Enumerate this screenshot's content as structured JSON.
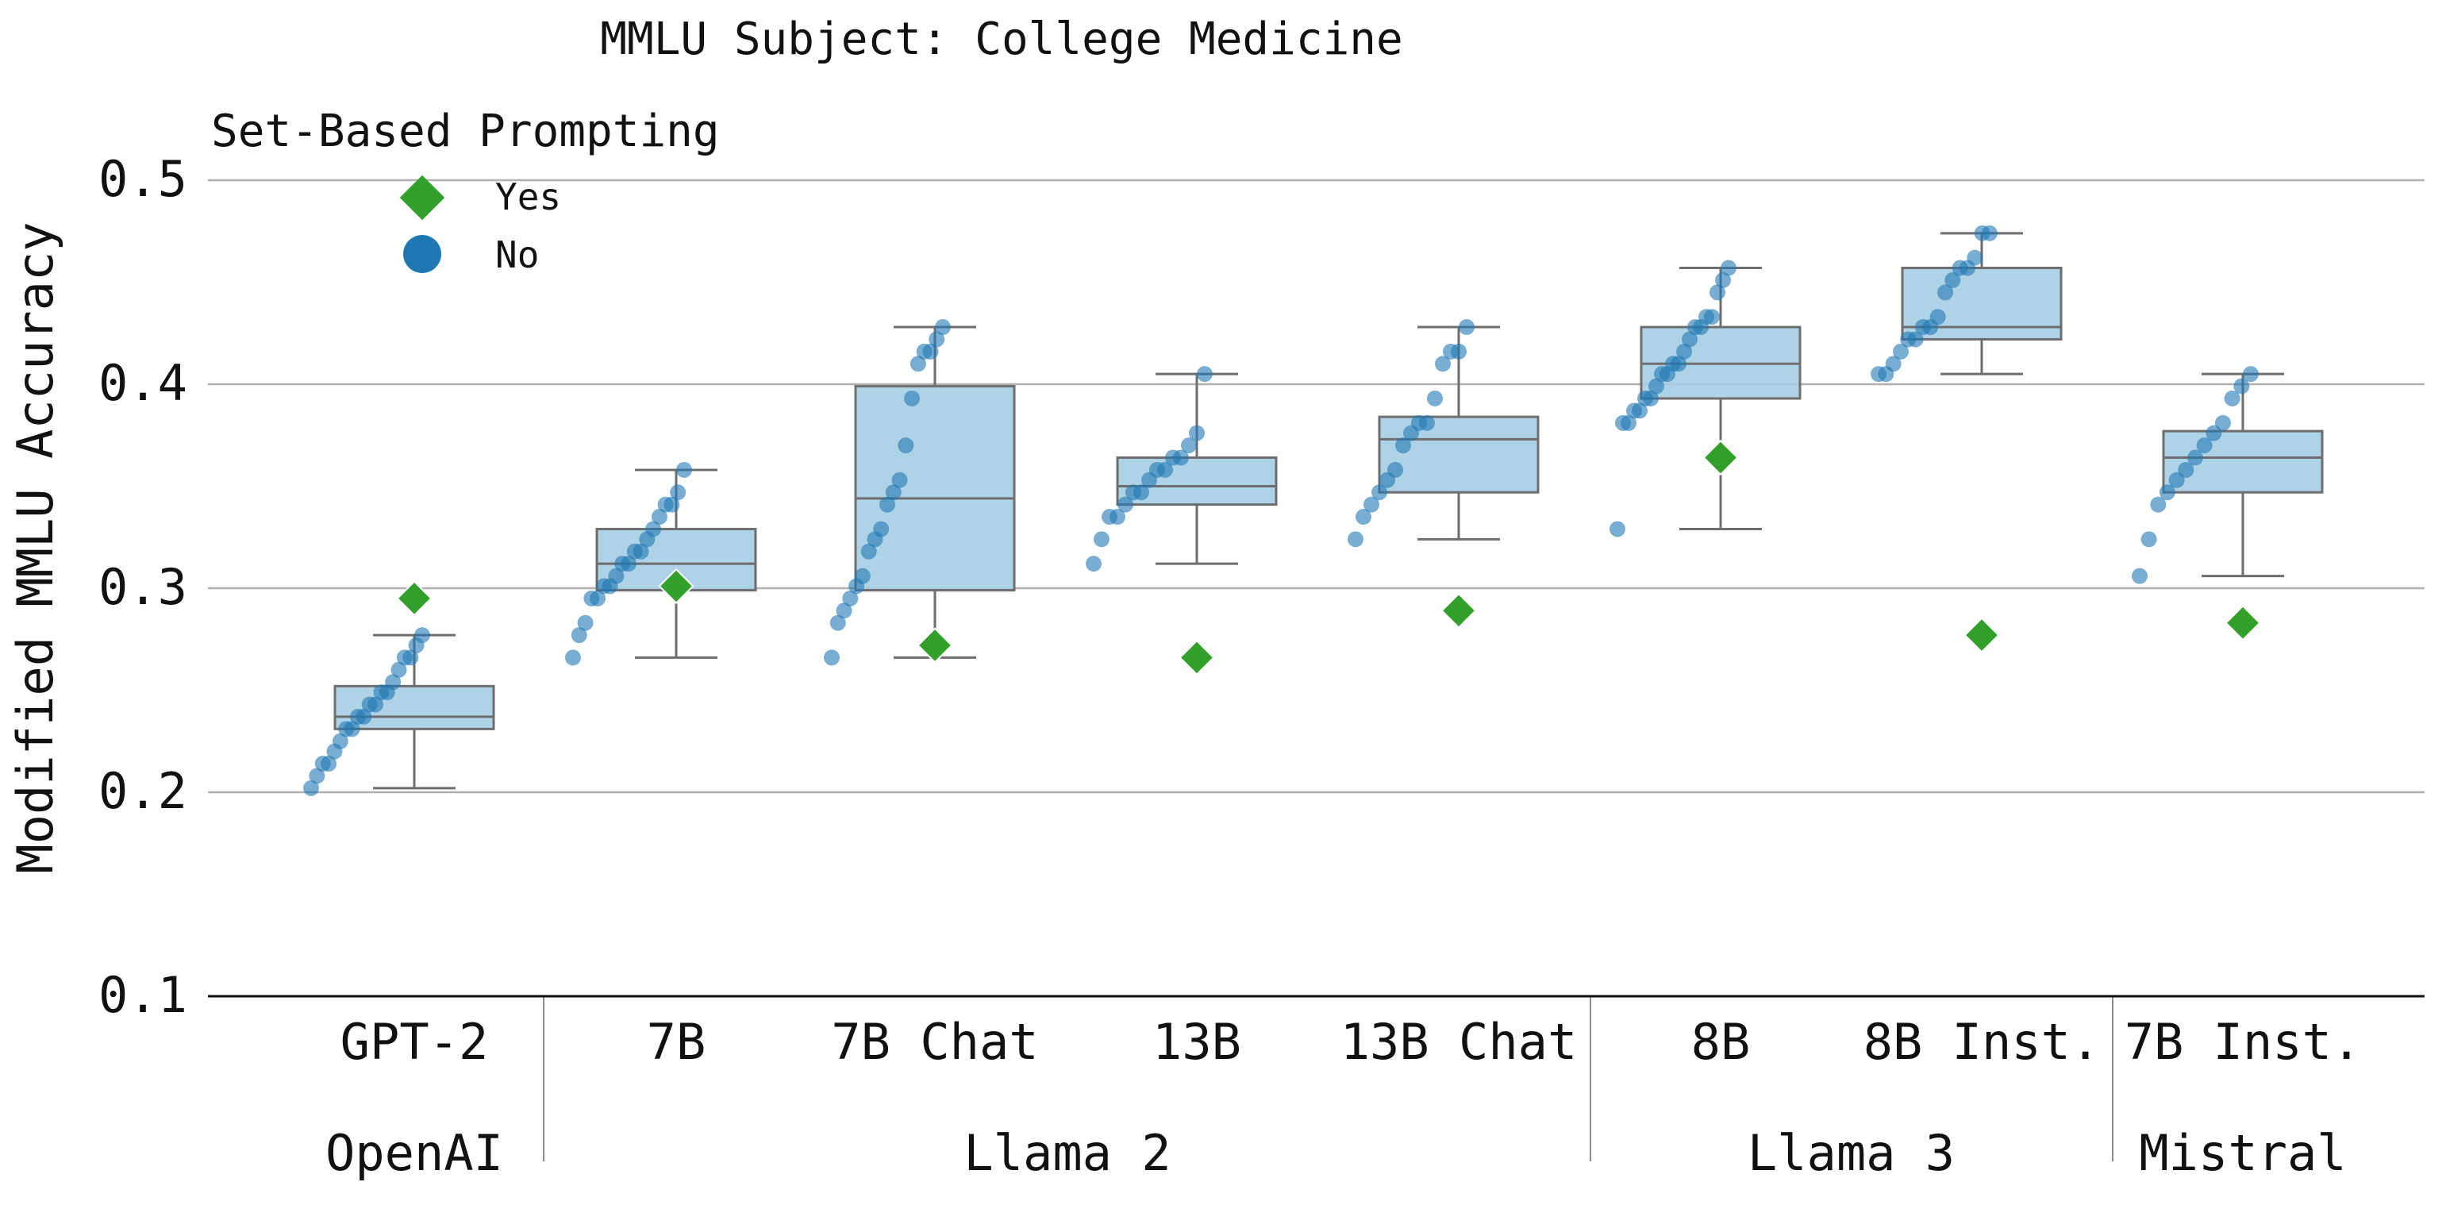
{
  "chart_data": {
    "type": "box",
    "title": "MMLU Subject: College Medicine",
    "ylabel": "Modified MMLU Accuracy",
    "xlabel": "",
    "ylim": [
      0.1,
      0.52
    ],
    "yticks": [
      "0.1",
      "0.2",
      "0.3",
      "0.4",
      "0.5"
    ],
    "grid": true,
    "legend": {
      "title": "Set-Based Prompting",
      "position": "top-left",
      "entries": [
        {
          "label": "Yes",
          "marker": "diamond",
          "color": "#33a02c"
        },
        {
          "label": "No",
          "marker": "circle",
          "color": "#1f78b4"
        }
      ]
    },
    "colors": {
      "box_fill": "#a6cee3",
      "box_edge": "#6e6e6e",
      "no_points": "#1f78b4",
      "yes_marker": "#33a02c"
    },
    "families": [
      {
        "name": "OpenAI",
        "models": [
          "GPT-2"
        ]
      },
      {
        "name": "Llama 2",
        "models": [
          "7B",
          "7B Chat",
          "13B",
          "13B Chat"
        ]
      },
      {
        "name": "Llama 3",
        "models": [
          "8B",
          "8B Inst."
        ]
      },
      {
        "name": "Mistral",
        "models": [
          "7B Inst."
        ]
      }
    ],
    "categories": [
      "GPT-2",
      "7B",
      "7B Chat",
      "13B",
      "13B Chat",
      "8B",
      "8B Inst.",
      "7B Inst."
    ],
    "boxes": [
      {
        "q1": 0.231,
        "median": 0.237,
        "q3": 0.252,
        "whisker_low": 0.202,
        "whisker_high": 0.277
      },
      {
        "q1": 0.299,
        "median": 0.312,
        "q3": 0.329,
        "whisker_low": 0.266,
        "whisker_high": 0.358
      },
      {
        "q1": 0.299,
        "median": 0.344,
        "q3": 0.399,
        "whisker_low": 0.266,
        "whisker_high": 0.428
      },
      {
        "q1": 0.341,
        "median": 0.35,
        "q3": 0.364,
        "whisker_low": 0.312,
        "whisker_high": 0.405
      },
      {
        "q1": 0.347,
        "median": 0.373,
        "q3": 0.384,
        "whisker_low": 0.324,
        "whisker_high": 0.428
      },
      {
        "q1": 0.393,
        "median": 0.41,
        "q3": 0.428,
        "whisker_low": 0.329,
        "whisker_high": 0.457
      },
      {
        "q1": 0.422,
        "median": 0.428,
        "q3": 0.457,
        "whisker_low": 0.405,
        "whisker_high": 0.474
      },
      {
        "q1": 0.347,
        "median": 0.364,
        "q3": 0.377,
        "whisker_low": 0.306,
        "whisker_high": 0.405
      }
    ],
    "set_based_yes": [
      0.295,
      0.301,
      0.272,
      0.266,
      0.289,
      0.364,
      0.277,
      0.283
    ],
    "no_points": [
      [
        0.202,
        0.208,
        0.214,
        0.214,
        0.22,
        0.225,
        0.231,
        0.231,
        0.237,
        0.237,
        0.243,
        0.243,
        0.249,
        0.249,
        0.254,
        0.26,
        0.266,
        0.266,
        0.272,
        0.277
      ],
      [
        0.266,
        0.277,
        0.283,
        0.295,
        0.295,
        0.301,
        0.301,
        0.306,
        0.312,
        0.312,
        0.318,
        0.318,
        0.324,
        0.329,
        0.335,
        0.341,
        0.341,
        0.347,
        0.358
      ],
      [
        0.266,
        0.283,
        0.289,
        0.295,
        0.301,
        0.306,
        0.318,
        0.324,
        0.329,
        0.341,
        0.347,
        0.353,
        0.37,
        0.393,
        0.41,
        0.416,
        0.416,
        0.422,
        0.428
      ],
      [
        0.312,
        0.324,
        0.335,
        0.335,
        0.341,
        0.347,
        0.347,
        0.353,
        0.358,
        0.358,
        0.364,
        0.364,
        0.37,
        0.376,
        0.405
      ],
      [
        0.324,
        0.335,
        0.341,
        0.347,
        0.353,
        0.358,
        0.37,
        0.376,
        0.381,
        0.381,
        0.393,
        0.41,
        0.416,
        0.416,
        0.428
      ],
      [
        0.329,
        0.381,
        0.381,
        0.387,
        0.387,
        0.393,
        0.393,
        0.399,
        0.405,
        0.405,
        0.41,
        0.41,
        0.416,
        0.422,
        0.428,
        0.428,
        0.433,
        0.433,
        0.445,
        0.451,
        0.457
      ],
      [
        0.405,
        0.405,
        0.41,
        0.416,
        0.422,
        0.422,
        0.428,
        0.428,
        0.433,
        0.445,
        0.451,
        0.457,
        0.457,
        0.462,
        0.474,
        0.474
      ],
      [
        0.306,
        0.324,
        0.341,
        0.347,
        0.353,
        0.358,
        0.364,
        0.37,
        0.376,
        0.381,
        0.393,
        0.399,
        0.405
      ]
    ]
  }
}
